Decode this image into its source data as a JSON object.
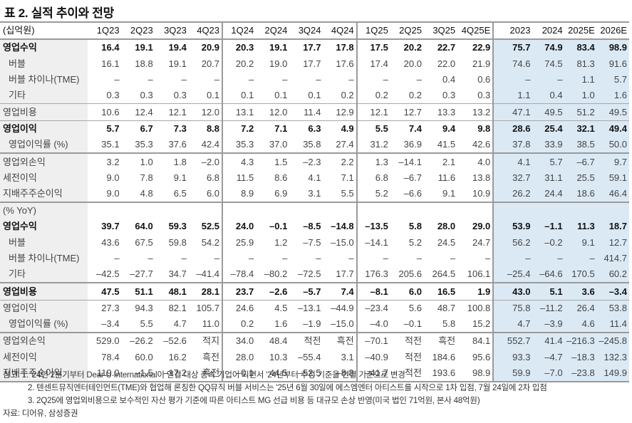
{
  "title": "표 2. 실적 추이와 전망",
  "table": {
    "unit_label": "(십억원)",
    "columns": [
      "1Q23",
      "2Q23",
      "3Q23",
      "4Q23",
      "1Q24",
      "2Q24",
      "3Q24",
      "4Q24",
      "1Q25",
      "2Q25",
      "3Q25",
      "4Q25E",
      "2023",
      "2024",
      "2025E",
      "2026E"
    ],
    "section1": [
      {
        "label": "영업수익",
        "bold": true,
        "indent": false,
        "values": [
          "16.4",
          "19.1",
          "19.4",
          "20.9",
          "20.3",
          "19.1",
          "17.7",
          "17.8",
          "17.5",
          "20.2",
          "22.7",
          "22.9",
          "75.7",
          "74.9",
          "83.4",
          "98.9"
        ]
      },
      {
        "label": "버블",
        "bold": false,
        "indent": true,
        "values": [
          "16.1",
          "18.8",
          "19.1",
          "20.7",
          "20.2",
          "19.0",
          "17.7",
          "17.6",
          "17.4",
          "20.0",
          "22.0",
          "21.9",
          "74.6",
          "74.5",
          "81.3",
          "91.6"
        ]
      },
      {
        "label": "버블 차이나(TME)",
        "bold": false,
        "indent": true,
        "values": [
          "–",
          "–",
          "–",
          "–",
          "–",
          "–",
          "–",
          "–",
          "–",
          "–",
          "0.4",
          "0.6",
          "–",
          "–",
          "1.1",
          "5.7"
        ]
      },
      {
        "label": "기타",
        "bold": false,
        "indent": true,
        "values": [
          "0.3",
          "0.3",
          "0.3",
          "0.1",
          "0.1",
          "0.1",
          "0.1",
          "0.2",
          "0.2",
          "0.2",
          "0.3",
          "0.3",
          "1.1",
          "0.4",
          "1.0",
          "1.6"
        ]
      },
      {
        "label": "영업비용",
        "bold": false,
        "indent": false,
        "values": [
          "10.6",
          "12.4",
          "12.1",
          "12.0",
          "13.1",
          "12.0",
          "11.4",
          "12.9",
          "12.1",
          "12.7",
          "13.3",
          "13.2",
          "47.1",
          "49.5",
          "51.2",
          "49.5"
        ]
      },
      {
        "label": "영업이익",
        "bold": true,
        "indent": false,
        "values": [
          "5.7",
          "6.7",
          "7.3",
          "8.8",
          "7.2",
          "7.1",
          "6.3",
          "4.9",
          "5.5",
          "7.4",
          "9.4",
          "9.8",
          "28.6",
          "25.4",
          "32.1",
          "49.4"
        ]
      },
      {
        "label": "영업이익률 (%)",
        "bold": false,
        "indent": true,
        "values": [
          "35.1",
          "35.3",
          "37.6",
          "42.4",
          "35.3",
          "37.0",
          "35.8",
          "27.4",
          "31.2",
          "36.9",
          "41.5",
          "42.6",
          "37.8",
          "33.9",
          "38.5",
          "50.0"
        ]
      },
      {
        "label": "영업외손익",
        "bold": false,
        "indent": false,
        "values": [
          "3.2",
          "1.0",
          "1.8",
          "–2.0",
          "4.3",
          "1.5",
          "–2.3",
          "2.2",
          "1.3",
          "–14.1",
          "2.1",
          "4.0",
          "4.1",
          "5.7",
          "–6.7",
          "9.7"
        ]
      },
      {
        "label": "세전이익",
        "bold": false,
        "indent": false,
        "values": [
          "9.0",
          "7.8",
          "9.1",
          "6.8",
          "11.5",
          "8.6",
          "4.1",
          "7.1",
          "6.8",
          "–6.7",
          "11.6",
          "13.8",
          "32.7",
          "31.1",
          "25.5",
          "59.1"
        ]
      },
      {
        "label": "지배주주순이익",
        "bold": false,
        "indent": false,
        "values": [
          "9.0",
          "4.8",
          "6.5",
          "6.0",
          "8.9",
          "6.9",
          "3.1",
          "5.5",
          "5.2",
          "–6.6",
          "9.1",
          "10.9",
          "26.2",
          "24.4",
          "18.6",
          "46.4"
        ]
      }
    ],
    "yoy_label": "(% YoY)",
    "section2": [
      {
        "label": "영업수익",
        "bold": true,
        "indent": false,
        "values": [
          "39.7",
          "64.0",
          "59.3",
          "52.5",
          "24.0",
          "–0.1",
          "–8.5",
          "–14.8",
          "–13.5",
          "5.8",
          "28.0",
          "29.0",
          "53.9",
          "–1.1",
          "11.3",
          "18.7"
        ]
      },
      {
        "label": "버블",
        "bold": false,
        "indent": true,
        "values": [
          "43.6",
          "67.5",
          "59.8",
          "54.2",
          "25.9",
          "1.2",
          "–7.5",
          "–15.0",
          "–14.1",
          "5.2",
          "24.5",
          "24.7",
          "56.2",
          "–0.2",
          "9.1",
          "12.7"
        ]
      },
      {
        "label": "버블 차이나(TME)",
        "bold": false,
        "indent": true,
        "values": [
          "–",
          "–",
          "–",
          "–",
          "–",
          "–",
          "–",
          "–",
          "–",
          "–",
          "–",
          "–",
          "–",
          "–",
          "–",
          "414.7"
        ]
      },
      {
        "label": "기타",
        "bold": false,
        "indent": true,
        "values": [
          "–42.5",
          "–27.7",
          "34.7",
          "–41.4",
          "–78.4",
          "–80.2",
          "–72.5",
          "17.7",
          "176.3",
          "205.6",
          "264.5",
          "106.1",
          "–25.4",
          "–64.6",
          "170.5",
          "60.2"
        ]
      },
      {
        "label": "영업비용",
        "bold": true,
        "indent": false,
        "values": [
          "47.5",
          "51.1",
          "48.1",
          "28.1",
          "23.7",
          "–2.6",
          "–5.7",
          "7.4",
          "–8.1",
          "6.0",
          "16.5",
          "1.9",
          "43.0",
          "5.1",
          "3.6",
          "–3.4"
        ]
      },
      {
        "label": "영업이익",
        "bold": false,
        "indent": false,
        "values": [
          "27.3",
          "94.3",
          "82.1",
          "105.7",
          "24.6",
          "4.5",
          "–13.1",
          "–44.9",
          "–23.4",
          "5.6",
          "48.7",
          "100.8",
          "75.8",
          "–11.2",
          "26.4",
          "53.8"
        ]
      },
      {
        "label": "영업이익률 (%)",
        "bold": false,
        "indent": true,
        "values": [
          "–3.4",
          "5.5",
          "4.7",
          "11.0",
          "0.2",
          "1.6",
          "–1.9",
          "–15.0",
          "–4.0",
          "–0.1",
          "5.8",
          "15.2",
          "4.7",
          "–3.9",
          "4.6",
          "11.4"
        ]
      },
      {
        "label": "영업외손익",
        "bold": false,
        "indent": false,
        "values": [
          "529.0",
          "–26.2",
          "–52.6",
          "적지",
          "34.0",
          "48.4",
          "적전",
          "흑전",
          "–70.1",
          "적전",
          "흑전",
          "84.1",
          "552.7",
          "41.4",
          "–216.3",
          "–245.8"
        ]
      },
      {
        "label": "세전이익",
        "bold": false,
        "indent": false,
        "values": [
          "78.4",
          "60.0",
          "16.2",
          "흑전",
          "28.0",
          "10.3",
          "–55.4",
          "3.1",
          "–40.9",
          "적전",
          "184.6",
          "95.6",
          "93.3",
          "–4.7",
          "–18.3",
          "132.3"
        ]
      },
      {
        "label": "지배주주순이익",
        "bold": false,
        "indent": false,
        "values": [
          "119.0",
          "–1.5",
          "–17.2",
          "흑전",
          "–0.1",
          "44.5",
          "–52.5",
          "–8.8",
          "–41.7",
          "적전",
          "193.6",
          "98.9",
          "59.9",
          "–7.0",
          "–23.8",
          "149.9"
        ]
      }
    ]
  },
  "notes": {
    "line1": "참고: 1. '24년 2분기부터 Dear U International이 연결 대상 종속 기업이 되면서 '24년부터 추정 기준을 연결 기준으로 변경",
    "line2": "2. 텐센트뮤직엔터테인먼트(TME)와 협업해 론칭한 QQ뮤직 버블 서비스는 '25년 6월 30일에 에스엠엔터 아티스트를 시작으로 1차 입점, 7월 24일에 2차 입점",
    "line3": "3. 2Q25에 영업외비용으로 보수적인 자산 평가 기준에 따른 아티스트 MG 선급 비용 등 대규모 손상 반영(미국 법인 71억원, 본사 48억원)",
    "source": "자료: 디어유, 삼성증권"
  },
  "colors": {
    "annual_bg": "#dbe9f4",
    "label_bg": "#efefef",
    "border": "#9a9a9a"
  }
}
